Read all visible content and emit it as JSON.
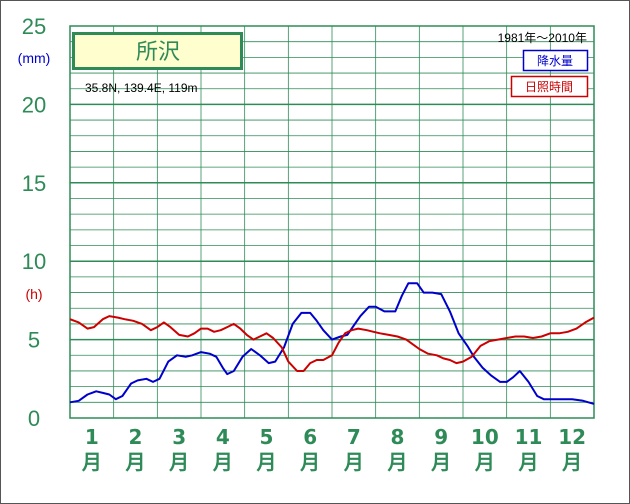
{
  "chart_data": {
    "type": "line",
    "title": "所沢",
    "location_info": "35.8N,  139.4E,  119m",
    "period": "1981年〜2010年",
    "y_unit_precip": "(mm)",
    "y_unit_sunshine": "(h)",
    "ylim": [
      0,
      25
    ],
    "yticks": [
      "0",
      "5",
      "10",
      "15",
      "20",
      "25"
    ],
    "month_numbers": [
      "1",
      "2",
      "3",
      "4",
      "5",
      "6",
      "7",
      "8",
      "9",
      "10",
      "11",
      "12"
    ],
    "month_suffix": "月",
    "grid": true,
    "legend_position": "top-right",
    "series": [
      {
        "name": "降水量",
        "color": "#0000cc",
        "x": [
          1.0,
          1.2,
          1.4,
          1.5,
          1.6,
          1.75,
          1.9,
          2.05,
          2.2,
          2.4,
          2.55,
          2.75,
          2.9,
          3.05,
          3.25,
          3.45,
          3.65,
          3.8,
          4.0,
          4.2,
          4.35,
          4.5,
          4.6,
          4.75,
          4.95,
          5.15,
          5.35,
          5.55,
          5.7,
          5.9,
          6.1,
          6.3,
          6.5,
          6.65,
          6.8,
          7.0,
          7.2,
          7.35,
          7.5,
          7.65,
          7.85,
          8.0,
          8.2,
          8.45,
          8.6,
          8.75,
          8.95,
          9.1,
          9.3,
          9.5,
          9.7,
          9.9,
          10.1,
          10.25,
          10.45,
          10.65,
          10.85,
          11.0,
          11.15,
          11.3,
          11.5,
          11.7,
          11.85,
          12.0,
          12.25,
          12.5,
          12.75,
          13.0
        ],
        "values": [
          1.0,
          1.1,
          1.5,
          1.6,
          1.7,
          1.6,
          1.5,
          1.2,
          1.4,
          2.2,
          2.4,
          2.5,
          2.3,
          2.5,
          3.6,
          4.0,
          3.9,
          4.0,
          4.2,
          4.1,
          3.9,
          3.2,
          2.8,
          3.0,
          3.9,
          4.4,
          4.0,
          3.5,
          3.6,
          4.5,
          6.0,
          6.7,
          6.7,
          6.2,
          5.6,
          5.0,
          5.2,
          5.3,
          5.9,
          6.5,
          7.1,
          7.1,
          6.8,
          6.8,
          7.8,
          8.6,
          8.6,
          8.0,
          8.0,
          7.9,
          6.8,
          5.4,
          4.6,
          3.9,
          3.2,
          2.7,
          2.3,
          2.3,
          2.6,
          3.0,
          2.3,
          1.4,
          1.2,
          1.2,
          1.2,
          1.2,
          1.1,
          0.9
        ]
      },
      {
        "name": "日照時間",
        "color": "#cc0000",
        "x": [
          1.0,
          1.2,
          1.4,
          1.55,
          1.75,
          1.9,
          2.1,
          2.25,
          2.45,
          2.65,
          2.85,
          3.0,
          3.15,
          3.3,
          3.5,
          3.7,
          3.85,
          4.0,
          4.15,
          4.3,
          4.45,
          4.6,
          4.75,
          4.9,
          5.05,
          5.2,
          5.35,
          5.5,
          5.65,
          5.85,
          6.0,
          6.2,
          6.35,
          6.5,
          6.65,
          6.8,
          7.0,
          7.15,
          7.3,
          7.45,
          7.6,
          7.8,
          7.95,
          8.1,
          8.3,
          8.5,
          8.7,
          8.85,
          9.0,
          9.2,
          9.4,
          9.55,
          9.7,
          9.85,
          10.0,
          10.2,
          10.4,
          10.6,
          10.8,
          11.0,
          11.2,
          11.4,
          11.6,
          11.8,
          12.0,
          12.2,
          12.4,
          12.6,
          12.8,
          13.0
        ],
        "values": [
          6.3,
          6.1,
          5.7,
          5.8,
          6.3,
          6.5,
          6.4,
          6.3,
          6.2,
          6.0,
          5.6,
          5.8,
          6.1,
          5.8,
          5.3,
          5.2,
          5.4,
          5.7,
          5.7,
          5.5,
          5.6,
          5.8,
          6.0,
          5.7,
          5.3,
          5.0,
          5.2,
          5.4,
          5.1,
          4.5,
          3.6,
          3.0,
          3.0,
          3.5,
          3.7,
          3.7,
          4.0,
          4.8,
          5.4,
          5.6,
          5.7,
          5.6,
          5.5,
          5.4,
          5.3,
          5.2,
          5.0,
          4.7,
          4.4,
          4.1,
          4.0,
          3.8,
          3.7,
          3.5,
          3.6,
          3.9,
          4.6,
          4.9,
          5.0,
          5.1,
          5.2,
          5.2,
          5.1,
          5.2,
          5.4,
          5.4,
          5.5,
          5.7,
          6.1,
          6.4
        ]
      }
    ]
  }
}
